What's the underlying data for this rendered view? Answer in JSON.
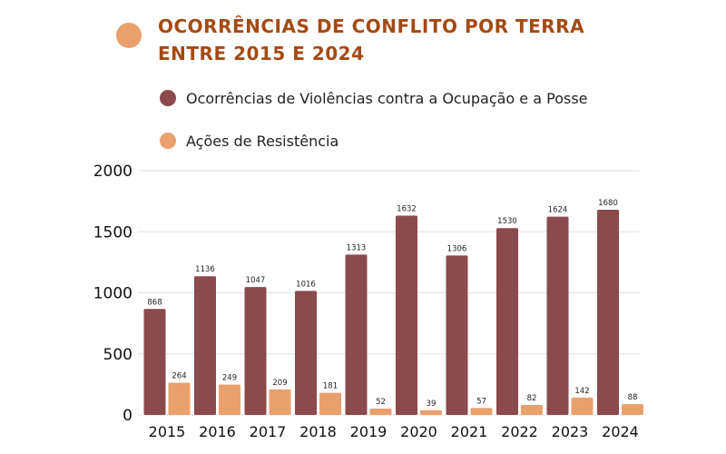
{
  "title_line1": "OCORRÊNCIAS DE CONFLITO POR TERRA",
  "title_line2": "ENTRE 2015 E 2024",
  "colors": {
    "accent": "#eaa06c",
    "title": "#a44a14",
    "violence": "#8b4a4c",
    "resistance": "#eaa06c",
    "grid": "#e2e2e2"
  },
  "chart_data": {
    "type": "bar",
    "categories": [
      "2015",
      "2016",
      "2017",
      "2018",
      "2019",
      "2020",
      "2021",
      "2022",
      "2023",
      "2024"
    ],
    "series": [
      {
        "name": "Ocorrências de Violências contra a Ocupação e a Posse",
        "color": "#8b4a4c",
        "values": [
          868,
          1136,
          1047,
          1016,
          1313,
          1632,
          1306,
          1530,
          1624,
          1680
        ]
      },
      {
        "name": "Ações de Resistência",
        "color": "#eaa06c",
        "values": [
          264,
          249,
          209,
          181,
          52,
          39,
          57,
          82,
          142,
          88
        ]
      }
    ],
    "yticks": [
      0,
      500,
      1000,
      1500,
      2000
    ],
    "ylim": [
      0,
      2000
    ],
    "grid": true,
    "legend": "top",
    "xlabel": "",
    "ylabel": "",
    "data_labels": true
  }
}
